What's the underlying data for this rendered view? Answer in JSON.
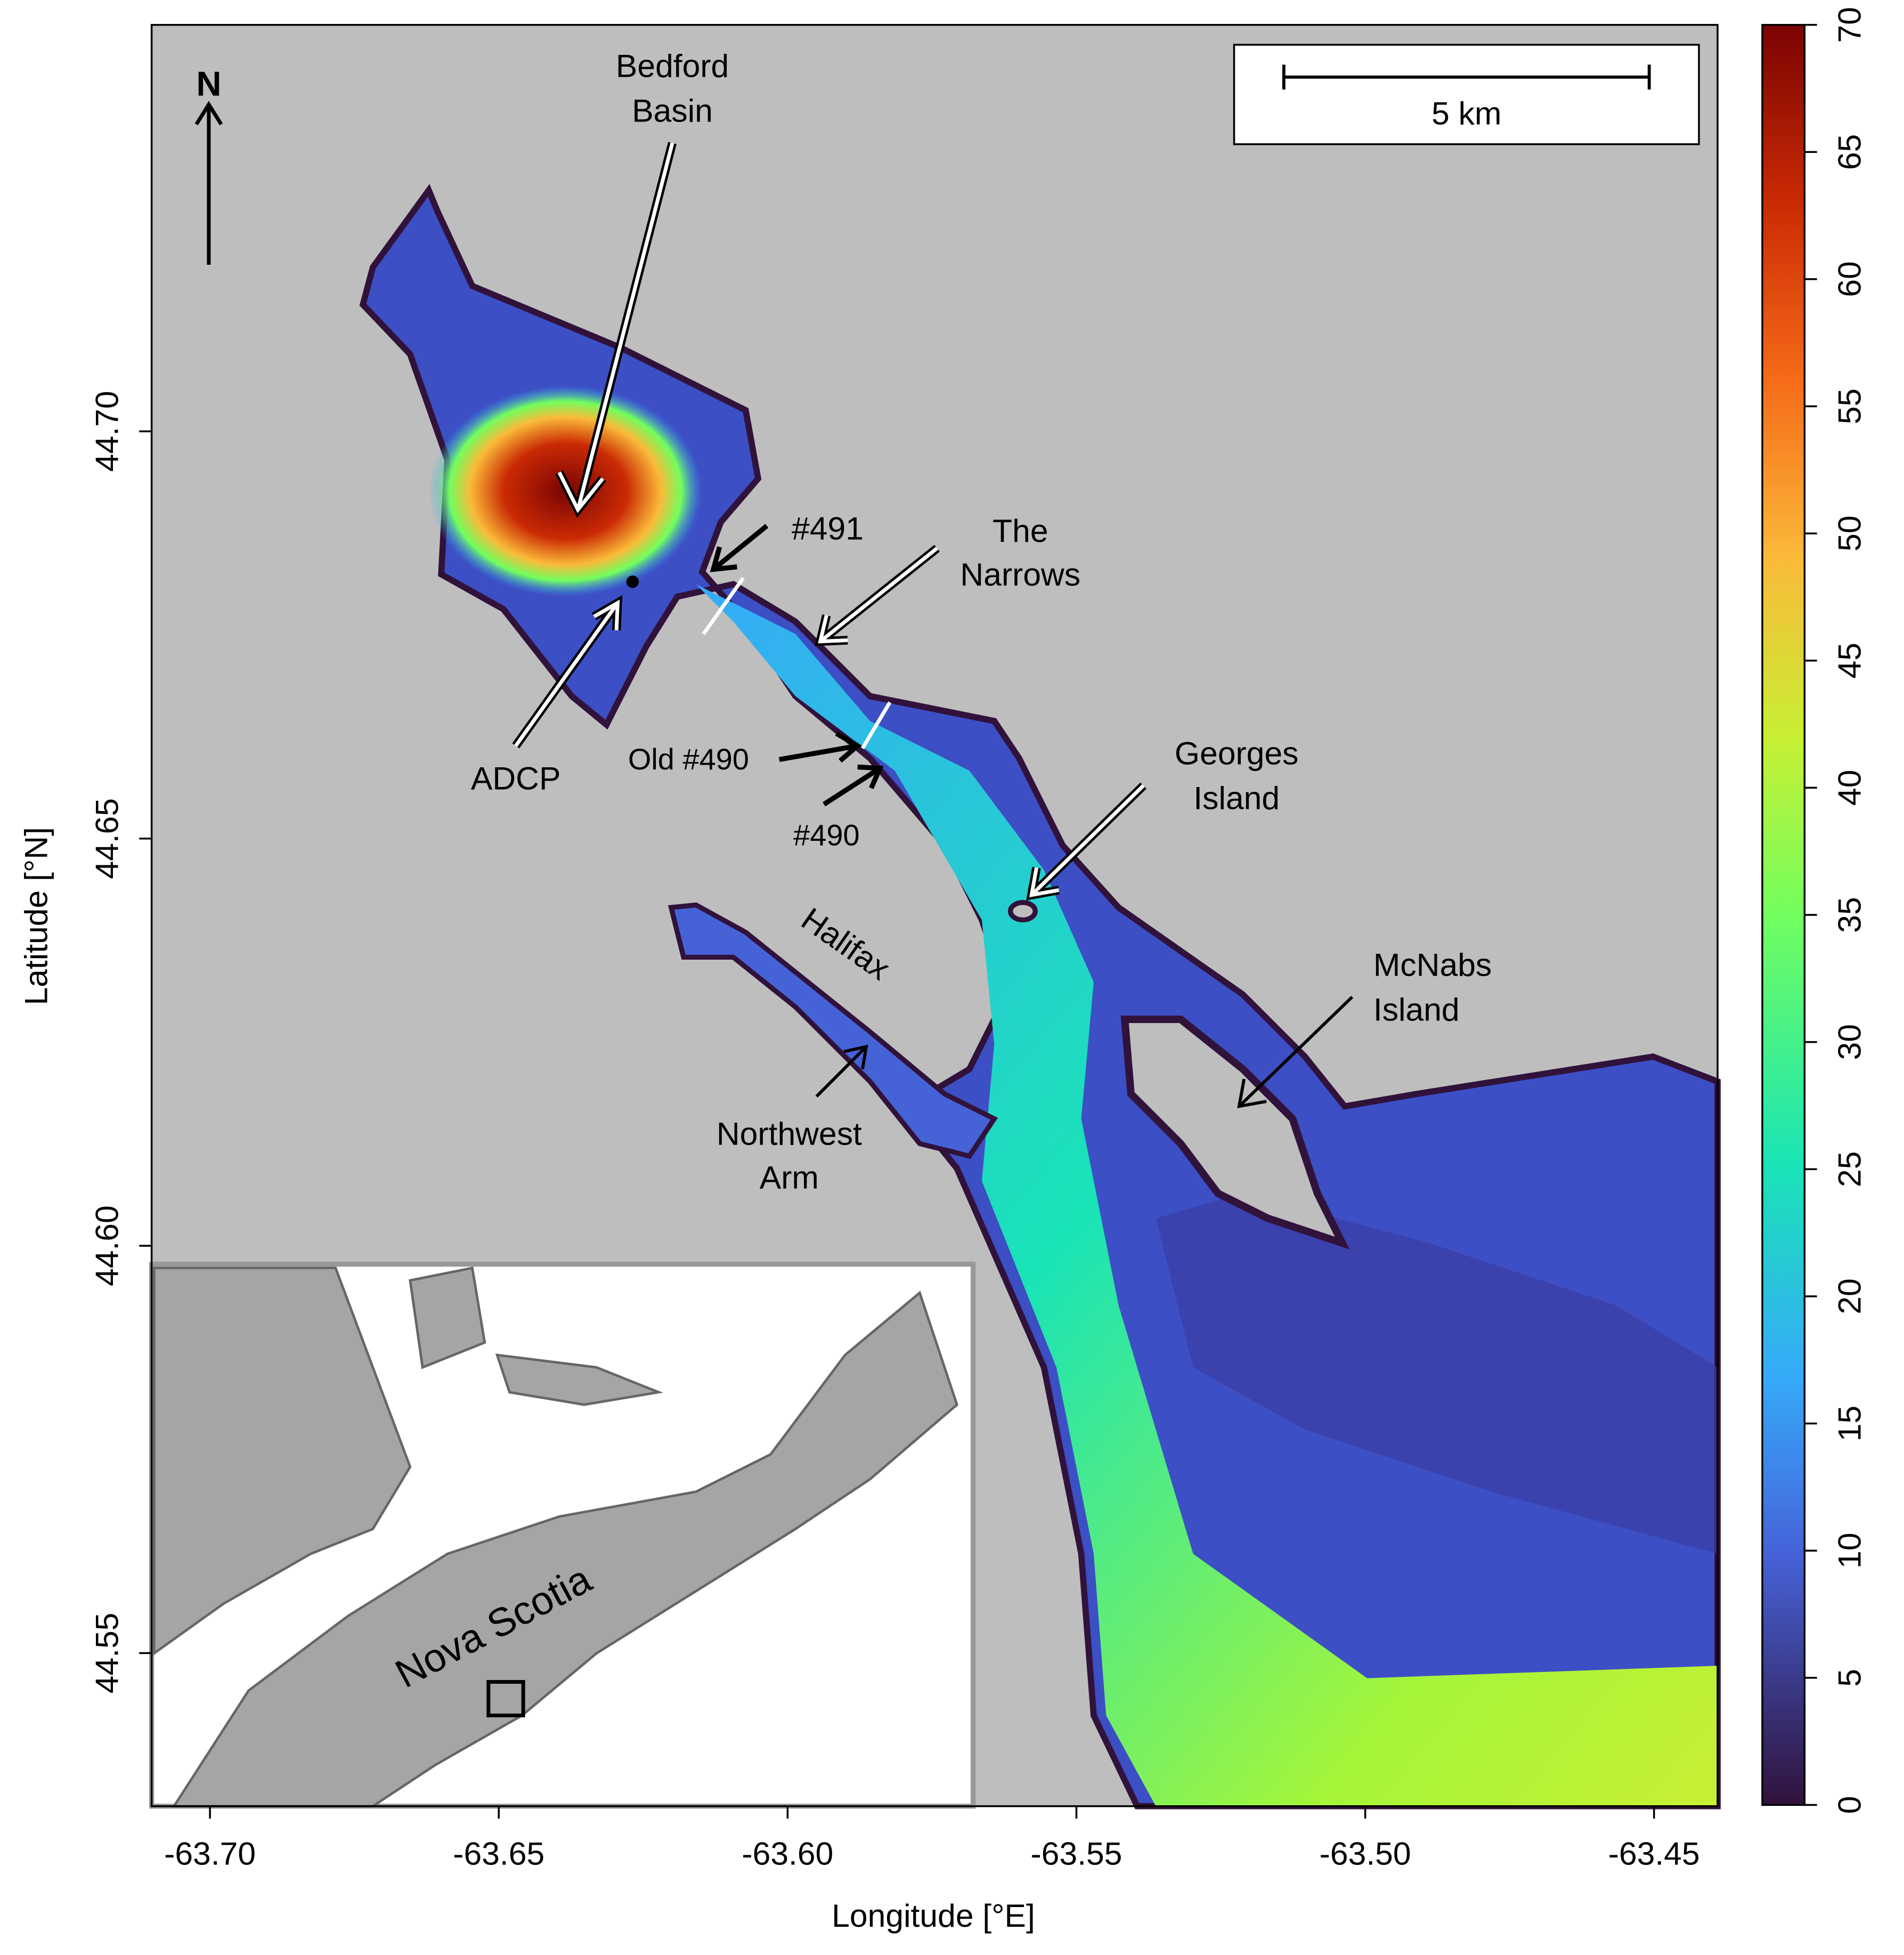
{
  "map": {
    "xlabel": "Longitude [°E]",
    "ylabel": "Latitude [°N]",
    "xlim": [
      -63.7101,
      -63.439
    ],
    "ylim": [
      44.5312,
      44.7499
    ],
    "xticks": [
      {
        "value": -63.7,
        "label": "-63.70"
      },
      -63.65,
      {
        "value": -63.6,
        "label": "-63.60"
      },
      -63.55,
      {
        "value": -63.5,
        "label": "-63.50"
      },
      -63.45
    ],
    "yticks": [
      44.55,
      {
        "value": 44.6,
        "label": "44.60"
      },
      44.65,
      {
        "value": 44.7,
        "label": "44.70"
      }
    ]
  },
  "colorbar": {
    "lim": [
      0,
      70
    ],
    "ticks": [
      0,
      5,
      10,
      15,
      20,
      25,
      30,
      35,
      40,
      45,
      50,
      55,
      60,
      65,
      70
    ]
  },
  "north": "N",
  "scale_bar": "5 km",
  "labels": [
    {
      "lines": [
        "Bedford",
        "Basin"
      ]
    },
    {
      "lines": [
        "#491"
      ]
    },
    {
      "lines": [
        "The",
        "Narrows"
      ]
    },
    {
      "lines": [
        "ADCP"
      ]
    },
    {
      "lines": [
        "Old #490"
      ]
    },
    {
      "lines": [
        "#490"
      ]
    },
    {
      "lines": [
        "Georges",
        "Island"
      ]
    },
    {
      "lines": [
        "McNabs",
        "Island"
      ]
    },
    {
      "lines": [
        "Halifax"
      ]
    },
    {
      "lines": [
        "Northwest",
        "Arm"
      ]
    }
  ],
  "inset_label": "Nova Scotia"
}
